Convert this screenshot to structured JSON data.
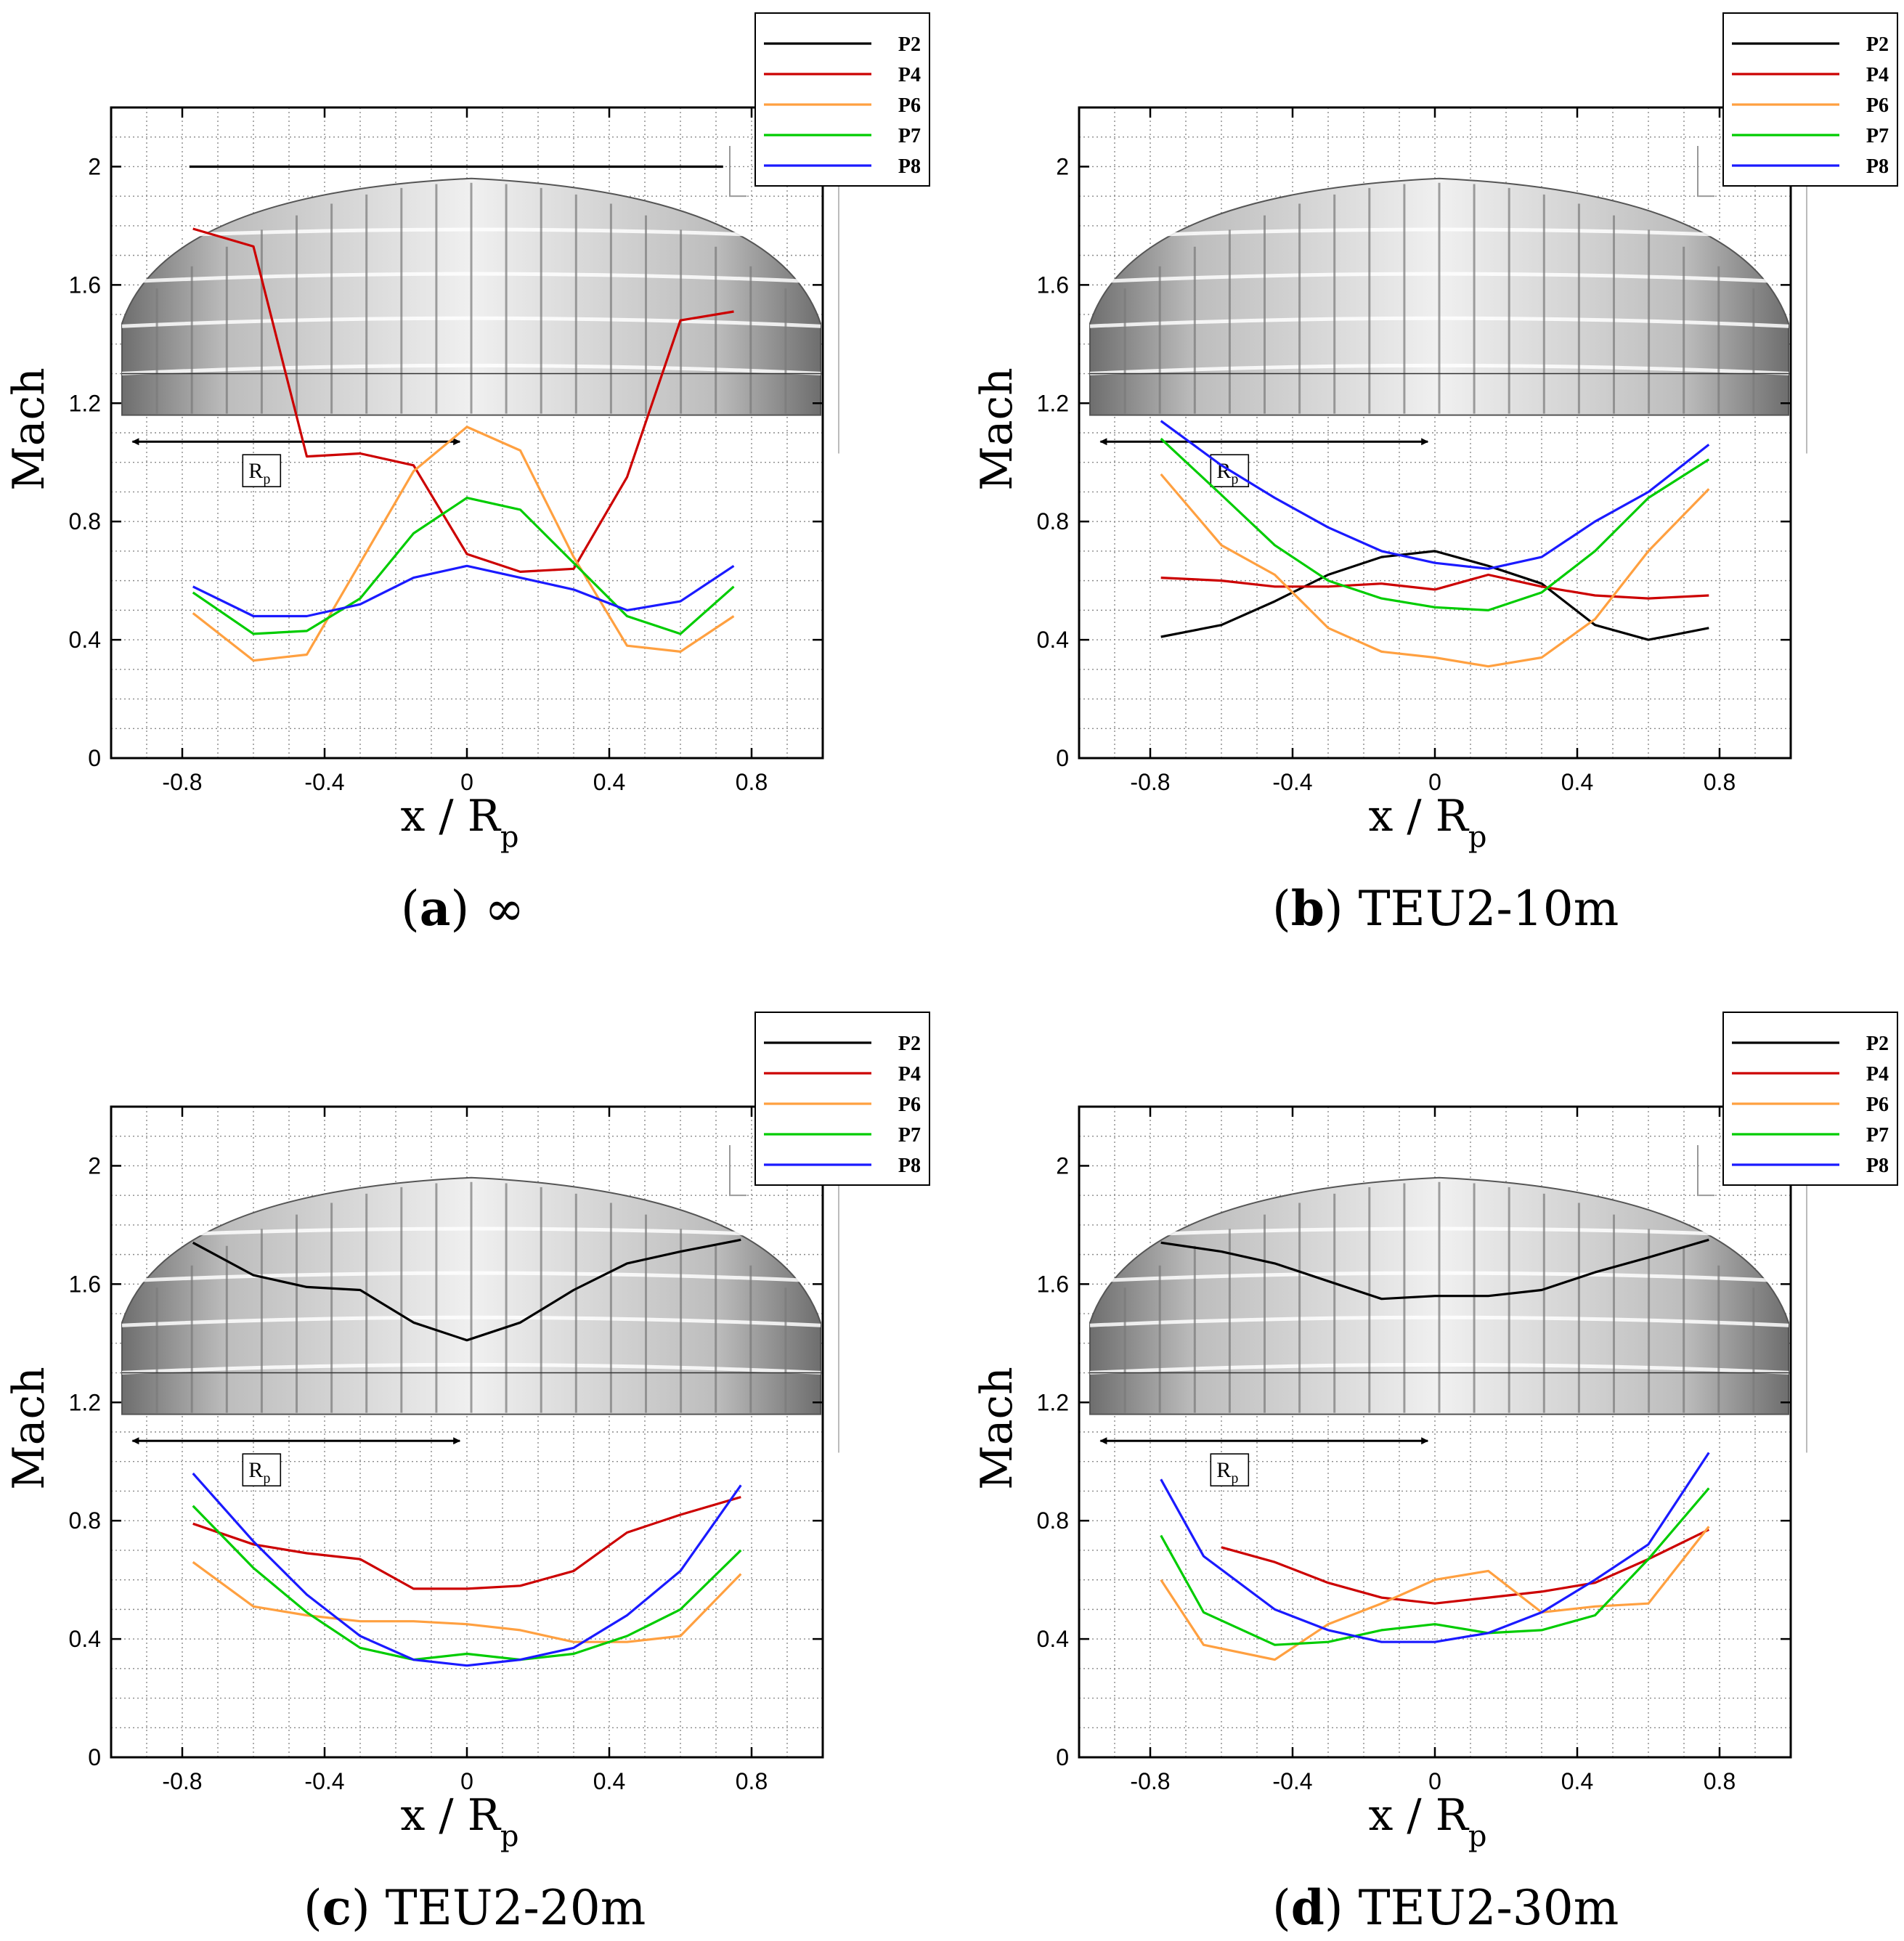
{
  "figure": {
    "legend_entries": [
      "P2",
      "P4",
      "P6",
      "P7",
      "P8"
    ],
    "colors": {
      "P2": "#000000",
      "P4": "#cc0000",
      "P6": "#ffa040",
      "P7": "#00cc00",
      "P8": "#1a1aff"
    }
  },
  "chart_data": [
    {
      "id": "a",
      "type": "line",
      "caption_letter": "a",
      "caption_text": "∞",
      "ylabel": "Mach",
      "xlabel_main": "x / R",
      "xlabel_sub": "p",
      "xlim": [
        -1.0,
        1.0
      ],
      "ylim": [
        0,
        2.2
      ],
      "xticks": [
        -0.8,
        -0.4,
        0,
        0.4,
        0.8
      ],
      "xtick_labels": [
        "-0.8",
        "-0.4",
        "0",
        "0.4",
        "0.8"
      ],
      "yticks": [
        0,
        0.4,
        0.8,
        1.2,
        1.6,
        2
      ],
      "ytick_labels": [
        "0",
        "0.4",
        "0.8",
        "1.2",
        "1.6",
        "2"
      ],
      "annotation": {
        "label_main": "R",
        "label_sub": "p",
        "arrow_x": [
          -0.94,
          -0.02
        ],
        "arrow_y": 1.07
      },
      "series": [
        {
          "name": "P2",
          "x": [
            -0.78,
            0.72
          ],
          "y": [
            2.0,
            2.0
          ]
        },
        {
          "name": "P4",
          "x": [
            -0.77,
            -0.6,
            -0.45,
            -0.3,
            -0.15,
            0.0,
            0.15,
            0.3,
            0.45,
            0.6,
            0.75
          ],
          "y": [
            1.79,
            1.73,
            1.02,
            1.03,
            0.99,
            0.69,
            0.63,
            0.64,
            0.95,
            1.48,
            1.51
          ]
        },
        {
          "name": "P6",
          "x": [
            -0.77,
            -0.6,
            -0.45,
            -0.3,
            -0.15,
            0.0,
            0.15,
            0.3,
            0.45,
            0.6,
            0.75
          ],
          "y": [
            0.49,
            0.33,
            0.35,
            0.66,
            0.97,
            1.12,
            1.04,
            0.68,
            0.38,
            0.36,
            0.48
          ]
        },
        {
          "name": "P7",
          "x": [
            -0.77,
            -0.6,
            -0.45,
            -0.3,
            -0.15,
            0.0,
            0.15,
            0.3,
            0.45,
            0.6,
            0.75
          ],
          "y": [
            0.56,
            0.42,
            0.43,
            0.54,
            0.76,
            0.88,
            0.84,
            0.66,
            0.48,
            0.42,
            0.58
          ]
        },
        {
          "name": "P8",
          "x": [
            -0.77,
            -0.6,
            -0.45,
            -0.3,
            -0.15,
            0.0,
            0.15,
            0.3,
            0.45,
            0.6,
            0.75
          ],
          "y": [
            0.58,
            0.48,
            0.48,
            0.52,
            0.61,
            0.65,
            0.61,
            0.57,
            0.5,
            0.53,
            0.65
          ]
        }
      ]
    },
    {
      "id": "b",
      "type": "line",
      "caption_letter": "b",
      "caption_text": "TEU2-10m",
      "ylabel": "Mach",
      "xlabel_main": "x / R",
      "xlabel_sub": "p",
      "xlim": [
        -1.0,
        1.0
      ],
      "ylim": [
        0,
        2.2
      ],
      "xticks": [
        -0.8,
        -0.4,
        0,
        0.4,
        0.8
      ],
      "xtick_labels": [
        "-0.8",
        "-0.4",
        "0",
        "0.4",
        "0.8"
      ],
      "yticks": [
        0,
        0.4,
        0.8,
        1.2,
        1.6,
        2
      ],
      "ytick_labels": [
        "0",
        "0.4",
        "0.8",
        "1.2",
        "1.6",
        "2"
      ],
      "annotation": {
        "label_main": "R",
        "label_sub": "p",
        "arrow_x": [
          -0.94,
          -0.02
        ],
        "arrow_y": 1.07
      },
      "series": [
        {
          "name": "P2",
          "x": [
            -0.77,
            -0.6,
            -0.45,
            -0.3,
            -0.15,
            0.0,
            0.15,
            0.3,
            0.45,
            0.6,
            0.77
          ],
          "y": [
            0.41,
            0.45,
            0.53,
            0.62,
            0.68,
            0.7,
            0.65,
            0.59,
            0.45,
            0.4,
            0.44
          ]
        },
        {
          "name": "P4",
          "x": [
            -0.77,
            -0.6,
            -0.45,
            -0.3,
            -0.15,
            0.0,
            0.15,
            0.3,
            0.45,
            0.6,
            0.77
          ],
          "y": [
            0.61,
            0.6,
            0.58,
            0.58,
            0.59,
            0.57,
            0.62,
            0.58,
            0.55,
            0.54,
            0.55
          ]
        },
        {
          "name": "P6",
          "x": [
            -0.77,
            -0.6,
            -0.45,
            -0.3,
            -0.15,
            0.0,
            0.15,
            0.3,
            0.45,
            0.6,
            0.77
          ],
          "y": [
            0.96,
            0.72,
            0.62,
            0.44,
            0.36,
            0.34,
            0.31,
            0.34,
            0.47,
            0.7,
            0.91
          ]
        },
        {
          "name": "P7",
          "x": [
            -0.77,
            -0.6,
            -0.45,
            -0.3,
            -0.15,
            0.0,
            0.15,
            0.3,
            0.45,
            0.6,
            0.77
          ],
          "y": [
            1.08,
            0.89,
            0.72,
            0.6,
            0.54,
            0.51,
            0.5,
            0.56,
            0.7,
            0.88,
            1.01
          ]
        },
        {
          "name": "P8",
          "x": [
            -0.77,
            -0.6,
            -0.45,
            -0.3,
            -0.15,
            0.0,
            0.15,
            0.3,
            0.45,
            0.6,
            0.77
          ],
          "y": [
            1.14,
            0.99,
            0.88,
            0.78,
            0.7,
            0.66,
            0.64,
            0.68,
            0.8,
            0.9,
            1.06
          ]
        }
      ]
    },
    {
      "id": "c",
      "type": "line",
      "caption_letter": "c",
      "caption_text": "TEU2-20m",
      "ylabel": "Mach",
      "xlabel_main": "x / R",
      "xlabel_sub": "p",
      "xlim": [
        -1.0,
        1.0
      ],
      "ylim": [
        0,
        2.2
      ],
      "xticks": [
        -0.8,
        -0.4,
        0,
        0.4,
        0.8
      ],
      "xtick_labels": [
        "-0.8",
        "-0.4",
        "0",
        "0.4",
        "0.8"
      ],
      "yticks": [
        0,
        0.4,
        0.8,
        1.2,
        1.6,
        2
      ],
      "ytick_labels": [
        "0",
        "0.4",
        "0.8",
        "1.2",
        "1.6",
        "2"
      ],
      "annotation": {
        "label_main": "R",
        "label_sub": "p",
        "arrow_x": [
          -0.94,
          -0.02
        ],
        "arrow_y": 1.07
      },
      "series": [
        {
          "name": "P2",
          "x": [
            -0.77,
            -0.6,
            -0.45,
            -0.3,
            -0.15,
            0.0,
            0.15,
            0.3,
            0.45,
            0.6,
            0.77
          ],
          "y": [
            1.74,
            1.63,
            1.59,
            1.58,
            1.47,
            1.41,
            1.47,
            1.58,
            1.67,
            1.71,
            1.75
          ]
        },
        {
          "name": "P4",
          "x": [
            -0.77,
            -0.6,
            -0.45,
            -0.3,
            -0.15,
            0.0,
            0.15,
            0.3,
            0.45,
            0.6,
            0.77
          ],
          "y": [
            0.79,
            0.72,
            0.69,
            0.67,
            0.57,
            0.57,
            0.58,
            0.63,
            0.76,
            0.82,
            0.88
          ]
        },
        {
          "name": "P6",
          "x": [
            -0.77,
            -0.6,
            -0.45,
            -0.3,
            -0.15,
            0.0,
            0.15,
            0.3,
            0.45,
            0.6,
            0.77
          ],
          "y": [
            0.66,
            0.51,
            0.48,
            0.46,
            0.46,
            0.45,
            0.43,
            0.39,
            0.39,
            0.41,
            0.62
          ]
        },
        {
          "name": "P7",
          "x": [
            -0.77,
            -0.6,
            -0.45,
            -0.3,
            -0.15,
            0.0,
            0.15,
            0.3,
            0.45,
            0.6,
            0.77
          ],
          "y": [
            0.85,
            0.64,
            0.49,
            0.37,
            0.33,
            0.35,
            0.33,
            0.35,
            0.41,
            0.5,
            0.7
          ]
        },
        {
          "name": "P8",
          "x": [
            -0.77,
            -0.6,
            -0.45,
            -0.3,
            -0.15,
            0.0,
            0.15,
            0.3,
            0.45,
            0.6,
            0.77
          ],
          "y": [
            0.96,
            0.73,
            0.55,
            0.41,
            0.33,
            0.31,
            0.33,
            0.37,
            0.48,
            0.63,
            0.92
          ]
        }
      ]
    },
    {
      "id": "d",
      "type": "line",
      "caption_letter": "d",
      "caption_text": "TEU2-30m",
      "ylabel": "Mach",
      "xlabel_main": "x / R",
      "xlabel_sub": "p",
      "xlim": [
        -1.0,
        1.0
      ],
      "ylim": [
        0,
        2.2
      ],
      "xticks": [
        -0.8,
        -0.4,
        0,
        0.4,
        0.8
      ],
      "xtick_labels": [
        "-0.8",
        "-0.4",
        "0",
        "0.4",
        "0.8"
      ],
      "yticks": [
        0,
        0.4,
        0.8,
        1.2,
        1.6,
        2
      ],
      "ytick_labels": [
        "0",
        "0.4",
        "0.8",
        "1.2",
        "1.6",
        "2"
      ],
      "annotation": {
        "label_main": "R",
        "label_sub": "p",
        "arrow_x": [
          -0.94,
          -0.02
        ],
        "arrow_y": 1.07
      },
      "series": [
        {
          "name": "P2",
          "x": [
            -0.77,
            -0.6,
            -0.45,
            -0.3,
            -0.15,
            0.0,
            0.15,
            0.3,
            0.45,
            0.6,
            0.77
          ],
          "y": [
            1.74,
            1.71,
            1.67,
            1.61,
            1.55,
            1.56,
            1.56,
            1.58,
            1.64,
            1.69,
            1.75
          ]
        },
        {
          "name": "P4",
          "x": [
            -0.6,
            -0.45,
            -0.3,
            -0.15,
            0.0,
            0.15,
            0.3,
            0.45,
            0.6,
            0.77
          ],
          "y": [
            0.71,
            0.66,
            0.59,
            0.54,
            0.52,
            0.54,
            0.56,
            0.59,
            0.67,
            0.77
          ]
        },
        {
          "name": "P6",
          "x": [
            -0.77,
            -0.65,
            -0.45,
            -0.3,
            -0.15,
            0.0,
            0.15,
            0.3,
            0.45,
            0.6,
            0.77
          ],
          "y": [
            0.6,
            0.38,
            0.33,
            0.45,
            0.52,
            0.6,
            0.63,
            0.49,
            0.51,
            0.52,
            0.78
          ]
        },
        {
          "name": "P7",
          "x": [
            -0.77,
            -0.65,
            -0.45,
            -0.3,
            -0.15,
            0.0,
            0.15,
            0.3,
            0.45,
            0.6,
            0.77
          ],
          "y": [
            0.75,
            0.49,
            0.38,
            0.39,
            0.43,
            0.45,
            0.42,
            0.43,
            0.48,
            0.67,
            0.91
          ]
        },
        {
          "name": "P8",
          "x": [
            -0.77,
            -0.65,
            -0.45,
            -0.3,
            -0.15,
            0.0,
            0.15,
            0.3,
            0.45,
            0.6,
            0.77
          ],
          "y": [
            0.94,
            0.68,
            0.5,
            0.43,
            0.39,
            0.39,
            0.42,
            0.49,
            0.6,
            0.72,
            1.03
          ]
        }
      ]
    }
  ]
}
